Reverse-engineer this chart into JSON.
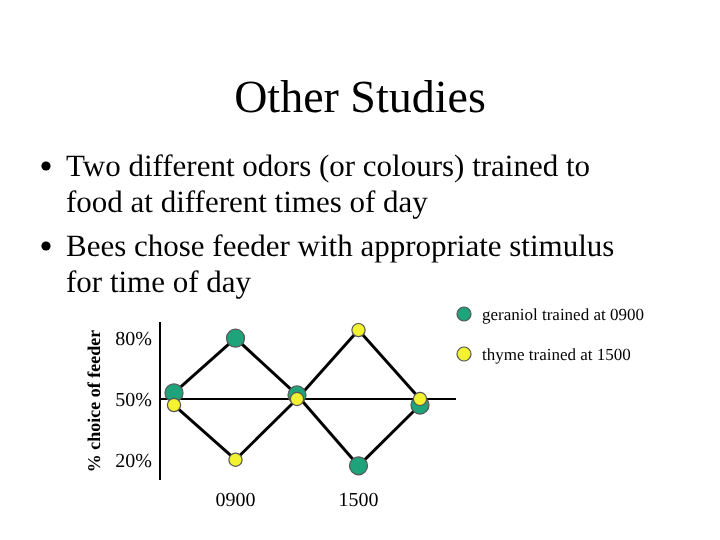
{
  "chart_data": {
    "type": "line",
    "title": "Other Studies",
    "annotations": [
      "Two different odors (or colours) trained to food at different times of day",
      "Bees chose feeder with appropriate stimulus for time of day"
    ],
    "ylabel": "% choice of feeder",
    "categories": [
      null,
      "0900",
      null,
      "1500",
      null
    ],
    "series": [
      {
        "name": "geraniol trained at 0900",
        "color": "#1fa37a",
        "values": [
          53,
          80,
          52,
          17,
          47
        ]
      },
      {
        "name": "thyme trained at 1500",
        "color": "#f2f230",
        "values": [
          47,
          20,
          50,
          84,
          50
        ]
      }
    ],
    "ylim": [
      10,
      88
    ],
    "yticks": [
      {
        "value": 20,
        "label": "20%"
      },
      {
        "value": 50,
        "label": "50%"
      },
      {
        "value": 80,
        "label": "80%"
      }
    ],
    "ref_lines": [
      {
        "axis": "y",
        "value": 50,
        "color": "#000000"
      }
    ],
    "marker": "circle",
    "legend": "right",
    "grid": false
  }
}
